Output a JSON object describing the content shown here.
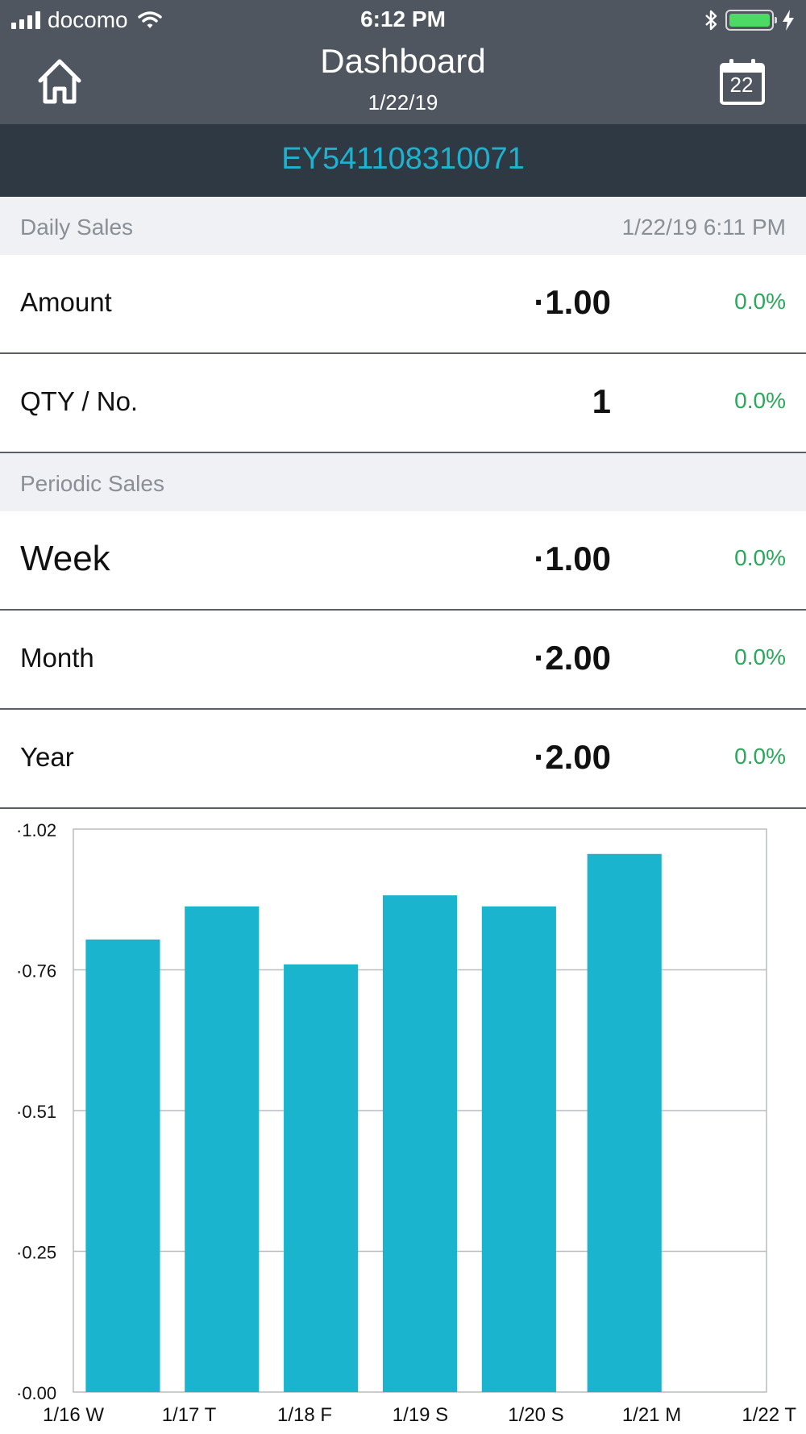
{
  "status_bar": {
    "carrier": "docomo",
    "time": "6:12 PM"
  },
  "nav": {
    "title": "Dashboard",
    "subtitle": "1/22/19",
    "calendar_day": "22"
  },
  "device": {
    "id": "EY541108310071"
  },
  "daily_sales": {
    "label": "Daily Sales",
    "timestamp": "1/22/19  6:11 PM",
    "rows": [
      {
        "label": "Amount",
        "value": "·1.00",
        "pct": "0.0%"
      },
      {
        "label": "QTY / No.",
        "value": "1",
        "pct": "0.0%"
      }
    ]
  },
  "periodic_sales": {
    "label": "Periodic Sales",
    "rows": [
      {
        "label": "Week",
        "value": "·1.00",
        "pct": "0.0%"
      },
      {
        "label": "Month",
        "value": "·2.00",
        "pct": "0.0%"
      },
      {
        "label": "Year",
        "value": "·2.00",
        "pct": "0.0%"
      }
    ]
  },
  "colors": {
    "accent": "#1ab4ce",
    "positive": "#2aa85a",
    "nav_bg": "#4f5660",
    "device_bg": "#2f3944"
  },
  "chart_data": {
    "type": "bar",
    "categories": [
      "1/16 W",
      "1/17 T",
      "1/18 F",
      "1/19 S",
      "1/20 S",
      "1/21 M",
      "1/22 T"
    ],
    "values": [
      0.82,
      0.88,
      0.775,
      0.9,
      0.88,
      0.975,
      null
    ],
    "y_tick_labels": [
      "·0.00",
      "·0.25",
      "·0.51",
      "·0.76",
      "·1.02"
    ],
    "y_ticks": [
      0,
      0.255,
      0.51,
      0.765,
      1.02
    ],
    "ylim": [
      0,
      1.02
    ],
    "grid": true,
    "legend": "none"
  }
}
